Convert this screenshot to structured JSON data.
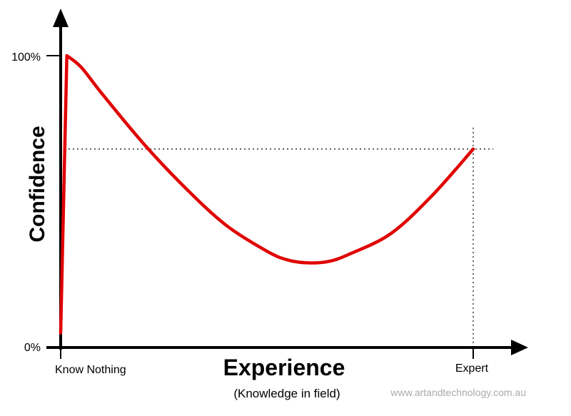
{
  "chart_data": {
    "type": "line",
    "title": "",
    "xlabel": "Experience",
    "xlabel_sub": "(Knowledge in field)",
    "ylabel": "Confidence",
    "y_ticks": [
      "0%",
      "100%"
    ],
    "x_ticks": [
      "Know Nothing",
      "Expert"
    ],
    "ylim": [
      0,
      100
    ],
    "xlim": [
      0,
      100
    ],
    "series": [
      {
        "color": "#e00000",
        "points": [
          {
            "x": 0,
            "y": 5
          },
          {
            "x": 1.5,
            "y": 100
          },
          {
            "x": 5,
            "y": 96
          },
          {
            "x": 10,
            "y": 87
          },
          {
            "x": 20,
            "y": 70
          },
          {
            "x": 30,
            "y": 55
          },
          {
            "x": 40,
            "y": 42
          },
          {
            "x": 50,
            "y": 33
          },
          {
            "x": 55,
            "y": 30
          },
          {
            "x": 60,
            "y": 29
          },
          {
            "x": 65,
            "y": 29.5
          },
          {
            "x": 70,
            "y": 32
          },
          {
            "x": 80,
            "y": 39
          },
          {
            "x": 90,
            "y": 52
          },
          {
            "x": 100,
            "y": 68
          }
        ]
      }
    ],
    "reference_lines": {
      "horizontal_y": 68,
      "vertical_x": 100,
      "style": "dotted"
    },
    "grid": false,
    "legend": "none"
  },
  "credit": "www.artandtechnology.com.au"
}
